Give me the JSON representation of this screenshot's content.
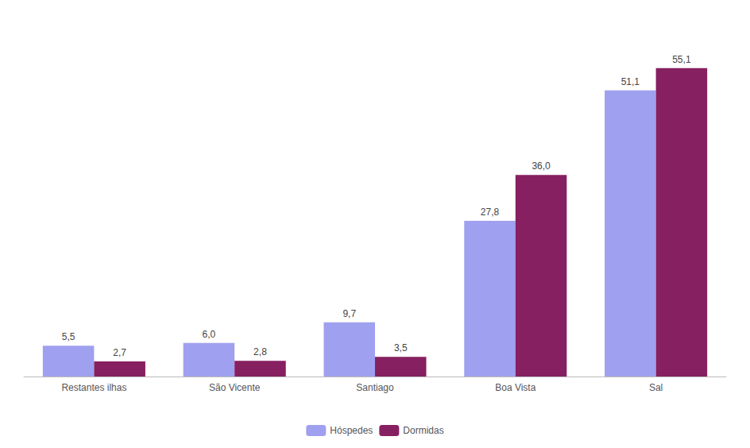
{
  "chart_data": {
    "type": "bar",
    "categories": [
      "Restantes ilhas",
      "São Vicente",
      "Santiago",
      "Boa Vista",
      "Sal"
    ],
    "series": [
      {
        "name": "Hóspedes",
        "color": "#a0a0f0",
        "values": [
          5.5,
          6.0,
          9.7,
          27.8,
          51.1
        ],
        "value_labels": [
          "5,5",
          "6,0",
          "9,7",
          "27,8",
          "51,1"
        ]
      },
      {
        "name": "Dormidas",
        "color": "#862060",
        "values": [
          2.7,
          2.8,
          3.5,
          36.0,
          55.1
        ],
        "value_labels": [
          "2,7",
          "2,8",
          "3,5",
          "36,0",
          "55,1"
        ]
      }
    ],
    "ylim": [
      0,
      63
    ],
    "grid": false,
    "legend": "bottom",
    "data_labels": true,
    "tick_labels": "x"
  }
}
